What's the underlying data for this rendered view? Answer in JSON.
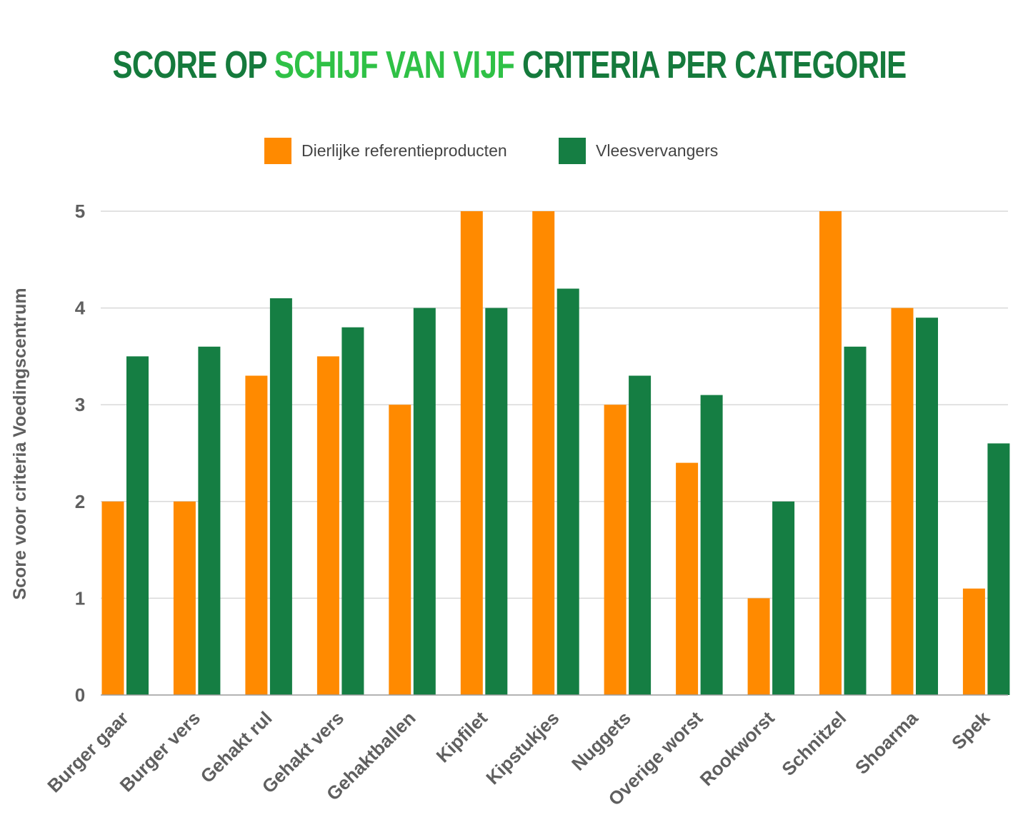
{
  "title": {
    "part1": "SCORE OP ",
    "part2": "SCHIJF VAN VIJF",
    "part3": " CRITERIA PER CATEGORIE"
  },
  "colors": {
    "title_dark": "#157a3c",
    "title_accent": "#2fc146",
    "series_orange": "#ff8a00",
    "series_green": "#157e43",
    "grid": "#d9d9d9",
    "text": "#5f5f5f"
  },
  "chart_data": {
    "type": "bar",
    "title": "SCORE OP SCHIJF VAN VIJF CRITERIA PER CATEGORIE",
    "xlabel": "",
    "ylabel": "Score voor criteria Voedingscentrum",
    "ylim": [
      0,
      5
    ],
    "yticks": [
      "0",
      "1",
      "2",
      "3",
      "4",
      "5"
    ],
    "grid": true,
    "legend_position": "top",
    "categories": [
      "Burger gaar",
      "Burger vers",
      "Gehakt rul",
      "Gehakt vers",
      "Gehaktballen",
      "Kipfilet",
      "Kipstukjes",
      "Nuggets",
      "Overige worst",
      "Rookworst",
      "Schnitzel",
      "Shoarma",
      "Spek"
    ],
    "series": [
      {
        "name": "Dierlijke referentieproducten",
        "color": "#ff8a00",
        "values": [
          2,
          2,
          3.3,
          3.5,
          3,
          5,
          5,
          3,
          2.4,
          1,
          5,
          4,
          1.1
        ]
      },
      {
        "name": "Vleesvervangers",
        "color": "#157e43",
        "values": [
          3.5,
          3.6,
          4.1,
          3.8,
          4,
          4,
          4.2,
          3.3,
          3.1,
          2,
          3.6,
          3.9,
          2.6
        ]
      }
    ]
  }
}
